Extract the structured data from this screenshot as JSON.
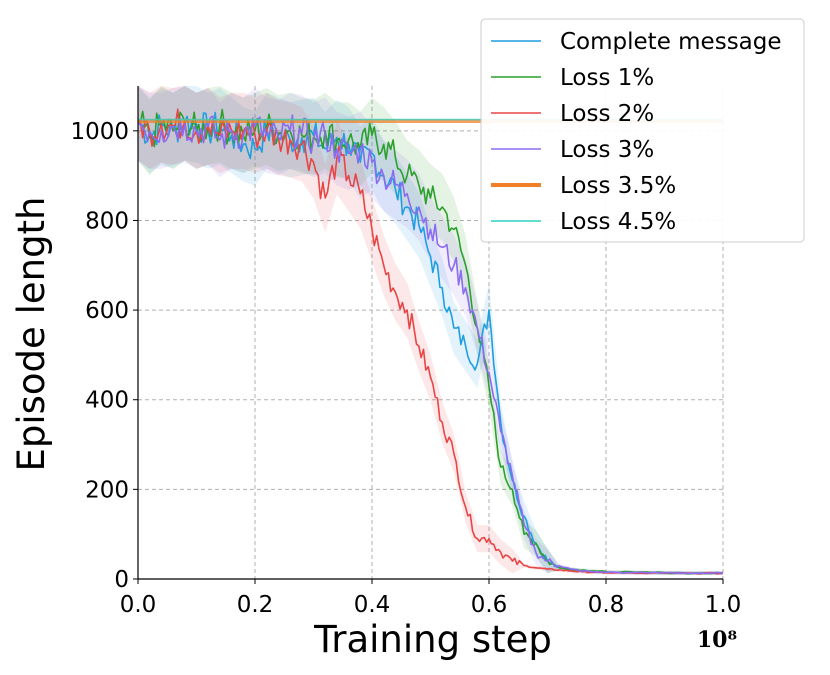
{
  "chart_data": {
    "type": "line",
    "title": "",
    "xlabel": "Training step",
    "ylabel": "Episode length",
    "x_scale_label": "10⁸",
    "xlim": [
      0.0,
      1.0
    ],
    "ylim": [
      0,
      1100
    ],
    "x_ticks": [
      0.0,
      0.2,
      0.4,
      0.6,
      0.8,
      1.0
    ],
    "x_tick_labels": [
      "0.0",
      "0.2",
      "0.4",
      "0.6",
      "0.8",
      "1.0"
    ],
    "y_ticks": [
      0,
      200,
      400,
      600,
      800,
      1000
    ],
    "y_tick_labels": [
      "0",
      "200",
      "400",
      "600",
      "800",
      "1000"
    ],
    "grid": true,
    "legend_position": "top-right",
    "x": [
      0.0,
      0.02,
      0.04,
      0.06,
      0.08,
      0.1,
      0.12,
      0.14,
      0.16,
      0.18,
      0.2,
      0.22,
      0.24,
      0.26,
      0.28,
      0.3,
      0.32,
      0.34,
      0.36,
      0.38,
      0.4,
      0.42,
      0.44,
      0.46,
      0.48,
      0.5,
      0.52,
      0.54,
      0.56,
      0.58,
      0.6,
      0.62,
      0.64,
      0.66,
      0.68,
      0.7,
      0.72,
      0.74,
      0.76,
      0.78,
      0.8,
      0.85,
      0.9,
      0.95,
      1.0
    ],
    "series": [
      {
        "name": "Complete message",
        "color": "#1f9ee0",
        "width": 1.6,
        "values": [
          1020,
          990,
          1010,
          1000,
          1020,
          1015,
          1000,
          1010,
          990,
          970,
          960,
          1000,
          990,
          980,
          985,
          990,
          960,
          985,
          970,
          930,
          950,
          900,
          870,
          830,
          790,
          720,
          650,
          560,
          520,
          480,
          600,
          350,
          220,
          140,
          80,
          40,
          25,
          20,
          18,
          16,
          15,
          14,
          13,
          13,
          13
        ]
      },
      {
        "name": "Loss 1%",
        "color": "#2ca02c",
        "width": 1.6,
        "values": [
          1020,
          985,
          1015,
          1000,
          1020,
          1000,
          1010,
          1015,
          1000,
          990,
          1000,
          1010,
          995,
          1000,
          990,
          985,
          1000,
          980,
          980,
          960,
          990,
          970,
          940,
          900,
          880,
          850,
          830,
          780,
          700,
          560,
          430,
          250,
          200,
          100,
          80,
          40,
          25,
          22,
          20,
          18,
          16,
          15,
          14,
          13,
          13
        ]
      },
      {
        "name": "Loss 2%",
        "color": "#e84545",
        "width": 1.6,
        "values": [
          1020,
          1000,
          1015,
          1010,
          1020,
          1000,
          1010,
          990,
          1000,
          1000,
          990,
          1000,
          985,
          980,
          970,
          930,
          850,
          940,
          900,
          860,
          780,
          700,
          640,
          600,
          520,
          450,
          350,
          280,
          160,
          90,
          90,
          60,
          40,
          30,
          25,
          22,
          20,
          18,
          16,
          15,
          14,
          13,
          13,
          13,
          13
        ]
      },
      {
        "name": "Loss 3%",
        "color": "#8b6cf0",
        "width": 1.6,
        "values": [
          1020,
          1000,
          1000,
          1010,
          1015,
          1000,
          1010,
          980,
          1000,
          990,
          1010,
          990,
          985,
          1000,
          995,
          980,
          990,
          960,
          950,
          960,
          930,
          900,
          880,
          860,
          830,
          780,
          740,
          700,
          650,
          560,
          460,
          330,
          230,
          120,
          60,
          40,
          30,
          22,
          18,
          16,
          15,
          14,
          14,
          13,
          13
        ]
      },
      {
        "name": "Loss 3.5%",
        "color": "#f07f27",
        "width": 4,
        "values": [
          1022,
          1022,
          1022,
          1022,
          1022,
          1022,
          1022,
          1022,
          1022,
          1022,
          1022,
          1022,
          1022,
          1022,
          1022,
          1022,
          1022,
          1022,
          1022,
          1022,
          1022,
          1022,
          1022,
          1022,
          1022,
          1022,
          1022,
          1022,
          1022,
          1022,
          1022,
          1022,
          1022,
          1022,
          1022,
          1022,
          1022,
          1022,
          1022,
          1022,
          1022,
          1022,
          1022,
          1022,
          1022
        ]
      },
      {
        "name": "Loss 4.5%",
        "color": "#2dd4c4",
        "width": 1.6,
        "values": [
          1025,
          1025,
          1025,
          1025,
          1025,
          1025,
          1025,
          1025,
          1025,
          1025,
          1025,
          1025,
          1025,
          1025,
          1025,
          1025,
          1025,
          1025,
          1025,
          1025,
          1025,
          1025,
          1025,
          1025,
          1025,
          1025,
          1025,
          1025,
          1025,
          1025,
          1025,
          1025,
          1025,
          1025,
          1025,
          1025,
          1025,
          1025,
          1025,
          1025,
          1025,
          1025,
          1025,
          1025,
          1025
        ]
      }
    ]
  }
}
